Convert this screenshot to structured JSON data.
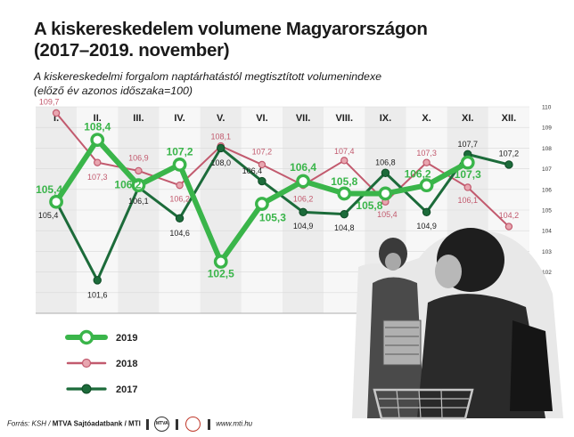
{
  "title_line1": "A kiskereskedelem volumene Magyarországon",
  "title_line2": "(2017–2019. november)",
  "subtitle_line1": "A kiskereskedelmi forgalom naptárhatástól megtisztított volumenindexe",
  "subtitle_line2": "(előző év azonos időszaka=100)",
  "footer": {
    "source_prefix": "Forrás: KSH / ",
    "source_bold": "MTVA Sajtóadatbank / MTI",
    "logo_text": "MTVA",
    "url": "www.mti.hu"
  },
  "colors": {
    "s2019": "#3ab54a",
    "s2018": "#c25a6e",
    "s2017": "#1c6b3a",
    "grid": "#d9d9d9"
  },
  "chart_data": {
    "type": "line",
    "categories": [
      "I.",
      "II.",
      "III.",
      "IV.",
      "V.",
      "VI.",
      "VII.",
      "VIII.",
      "IX.",
      "X.",
      "XI.",
      "XII."
    ],
    "title": "A kiskereskedelem volumene Magyarországon",
    "ylim": [
      100,
      110
    ],
    "yticks": [
      "100",
      "101",
      "102",
      "103",
      "104",
      "105",
      "106",
      "107",
      "108",
      "109",
      "110"
    ],
    "grid": true,
    "legend_placement": "bottom-left",
    "series": [
      {
        "name": "2019",
        "values": [
          105.4,
          108.4,
          106.2,
          107.2,
          102.5,
          105.3,
          106.4,
          105.8,
          105.8,
          106.2,
          107.3,
          null
        ],
        "labels": [
          "105,4",
          "108,4",
          "106,2",
          "107,2",
          "102,5",
          "105,3",
          "106,4",
          "105,8",
          "105,8",
          "106,2",
          "107,3",
          ""
        ]
      },
      {
        "name": "2018",
        "values": [
          109.7,
          107.3,
          106.9,
          106.2,
          108.1,
          107.2,
          106.2,
          107.4,
          105.4,
          107.3,
          106.1,
          104.2
        ],
        "labels": [
          "109,7",
          "107,3",
          "106,9",
          "106,2",
          "108,1",
          "107,2",
          "106,2",
          "107,4",
          "105,4",
          "107,3",
          "106,1",
          "104,2"
        ]
      },
      {
        "name": "2017",
        "values": [
          105.4,
          101.6,
          106.1,
          104.6,
          108.0,
          106.4,
          104.9,
          104.8,
          106.8,
          104.9,
          107.7,
          107.2
        ],
        "labels": [
          "105,4",
          "101,6",
          "106,1",
          "104,6",
          "108,0",
          "106,4",
          "104,9",
          "104,8",
          "106,8",
          "104,9",
          "107,7",
          "107,2"
        ]
      }
    ]
  }
}
